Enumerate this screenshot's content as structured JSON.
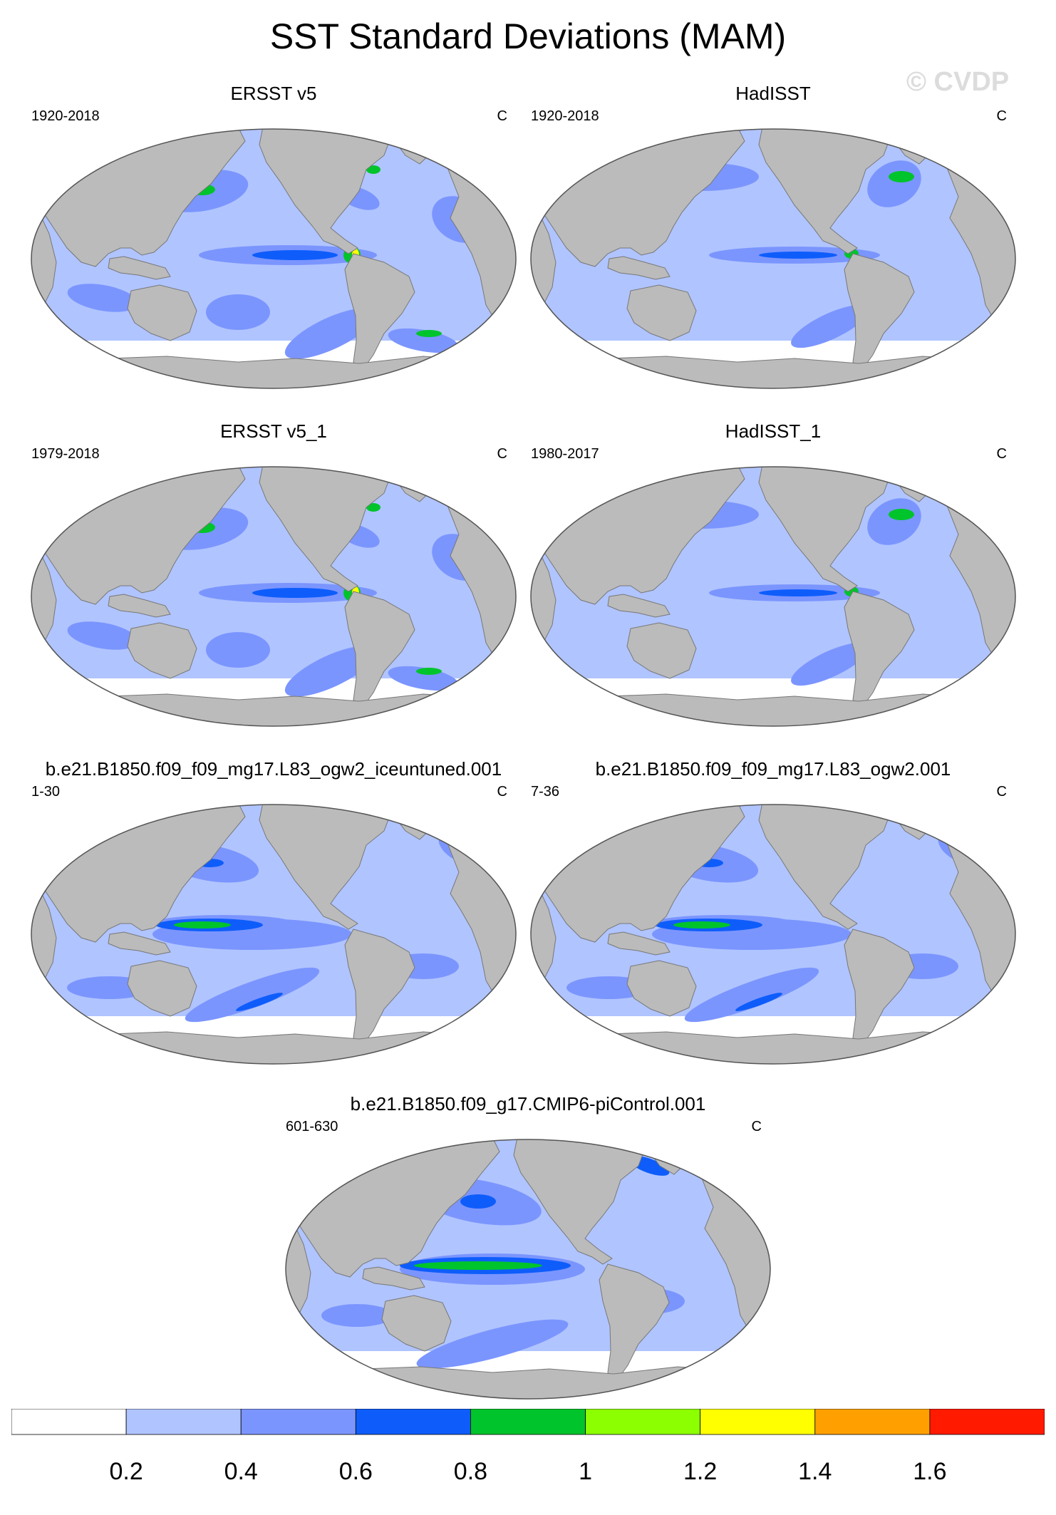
{
  "title": "SST Standard Deviations (MAM)",
  "watermark": "© CVDP",
  "units": "C",
  "colors": {
    "land": "#bbbbbb",
    "coast": "#777777",
    "levels": [
      "#ffffff",
      "#b0c4ff",
      "#7b95ff",
      "#0e5dfb",
      "#00c42b",
      "#8cff00",
      "#ffff00",
      "#ffa000",
      "#ff1a00"
    ]
  },
  "panels": [
    {
      "title": "ERSST v5",
      "years": "1920-2018",
      "style": "obs"
    },
    {
      "title": "HadISST",
      "years": "1920-2018",
      "style": "obs2"
    },
    {
      "title": "ERSST v5_1",
      "years": "1979-2018",
      "style": "obs"
    },
    {
      "title": "HadISST_1",
      "years": "1980-2017",
      "style": "obs2"
    },
    {
      "title": "b.e21.B1850.f09_f09_mg17.L83_ogw2_iceuntuned.001",
      "years": "1-30",
      "style": "model"
    },
    {
      "title": "b.e21.B1850.f09_f09_mg17.L83_ogw2.001",
      "years": "7-36",
      "style": "model"
    },
    {
      "title": "b.e21.B1850.f09_g17.CMIP6-piControl.001",
      "years": "601-630",
      "style": "model2"
    }
  ],
  "colorbar": {
    "labels": [
      "0.2",
      "0.4",
      "0.6",
      "0.8",
      "1",
      "1.2",
      "1.4",
      "1.6"
    ]
  }
}
